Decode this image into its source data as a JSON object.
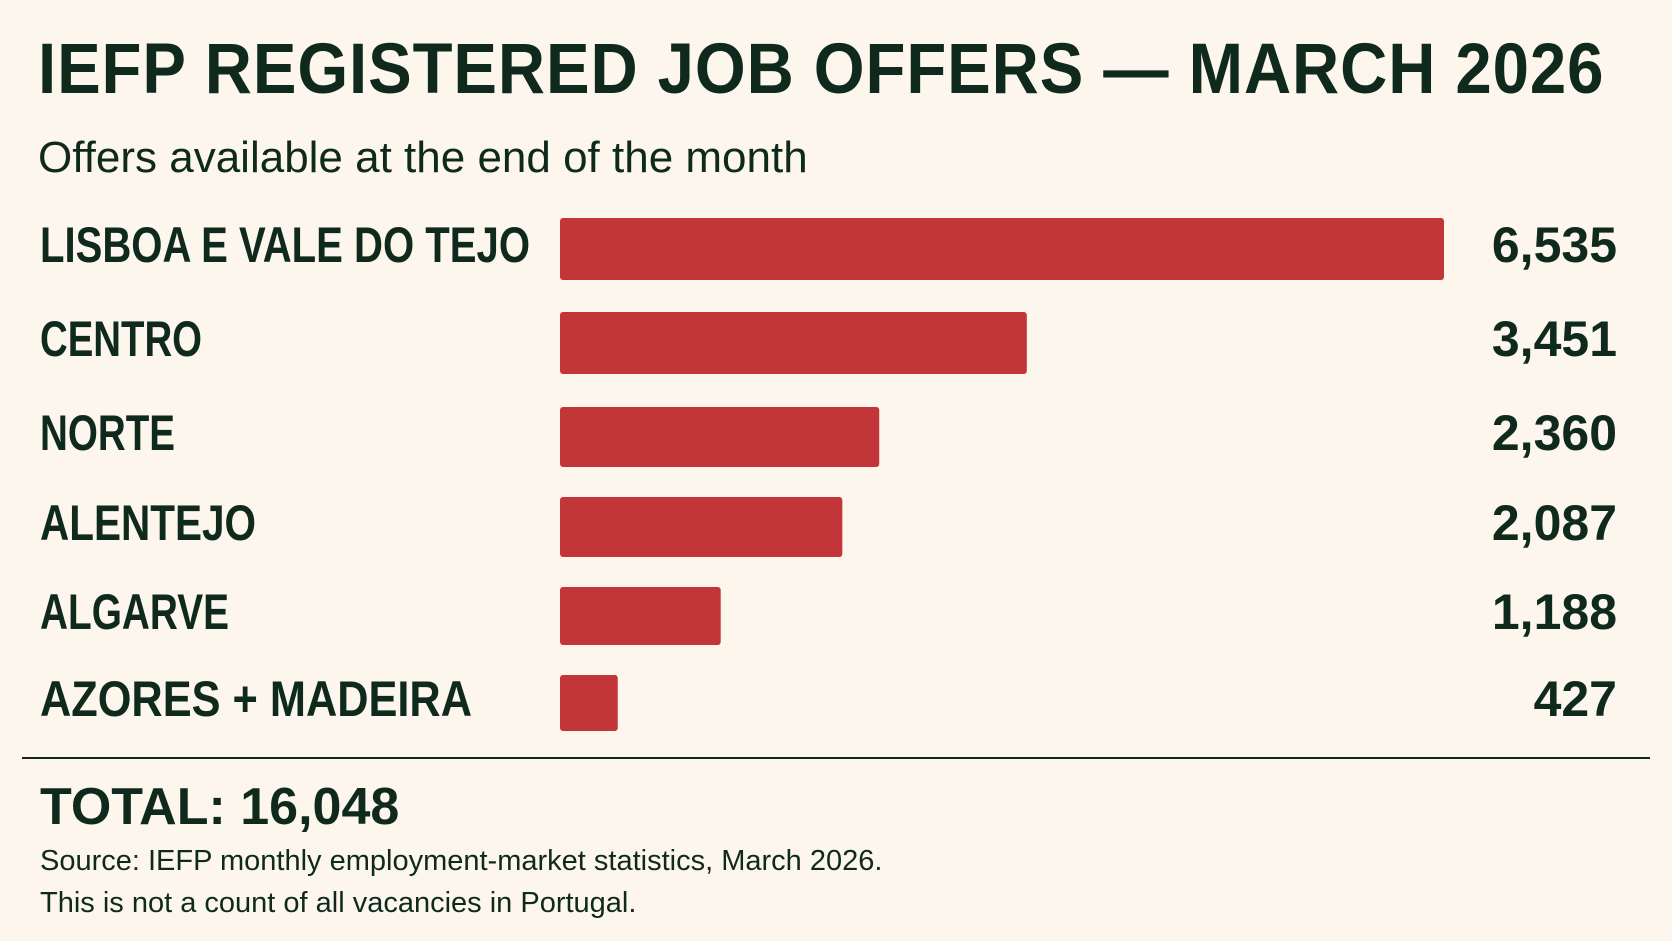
{
  "title": "IEFP REGISTERED JOB OFFERS — MARCH 2026",
  "subtitle": "Offers available at the end of the month",
  "chart_data": {
    "type": "bar",
    "orientation": "horizontal",
    "title": "IEFP REGISTERED JOB OFFERS — MARCH 2026",
    "subtitle": "Offers available at the end of the month",
    "categories": [
      "LISBOA E VALE DO TEJO",
      "CENTRO",
      "NORTE",
      "ALENTEJO",
      "ALGARVE",
      "AZORES + MADEIRA"
    ],
    "values": [
      6535,
      3451,
      2360,
      2087,
      1188,
      427
    ],
    "value_labels": [
      "6,535",
      "3,451",
      "2,360",
      "2,087",
      "1,188",
      "427"
    ],
    "xlim": [
      0,
      6535
    ],
    "grid": false,
    "legend": "none",
    "bar_color": "#c23538"
  },
  "total": "TOTAL: 16,048",
  "source_note": "Source: IEFP monthly employment-market statistics, March 2026.",
  "disclaimer": "This is not a count of all vacancies in Portugal.",
  "colors": {
    "background": "#fcf6ec",
    "text": "#0f2a1d",
    "bar": "#c23538"
  }
}
